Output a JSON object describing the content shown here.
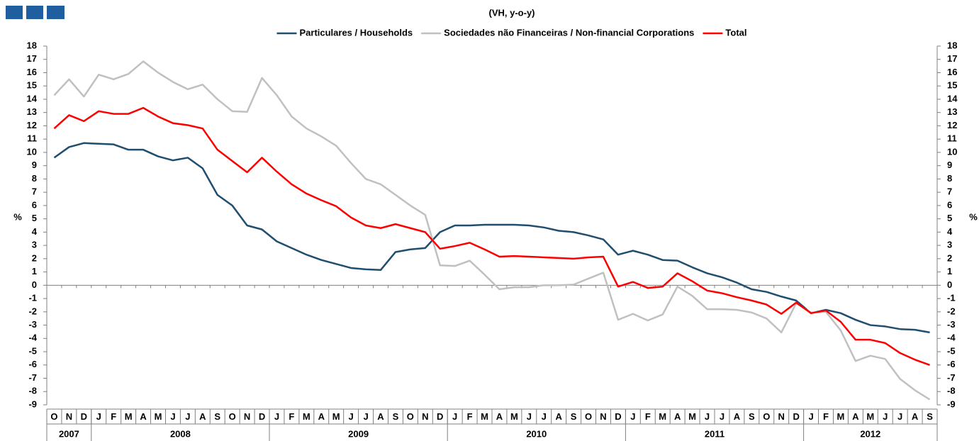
{
  "chart_data": {
    "type": "line",
    "title": "(VH, y-o-y)",
    "y_label": "%",
    "categories": [
      "O",
      "N",
      "D",
      "J",
      "F",
      "M",
      "A",
      "M",
      "J",
      "J",
      "A",
      "S",
      "O",
      "N",
      "D",
      "J",
      "F",
      "M",
      "A",
      "M",
      "J",
      "J",
      "A",
      "S",
      "O",
      "N",
      "D",
      "J",
      "F",
      "M",
      "A",
      "M",
      "J",
      "J",
      "A",
      "S",
      "O",
      "N",
      "D",
      "J",
      "F",
      "M",
      "A",
      "M",
      "J",
      "J",
      "A",
      "S",
      "O",
      "N",
      "D",
      "J",
      "F",
      "M",
      "A",
      "M",
      "J",
      "J",
      "A",
      "S"
    ],
    "years": [
      "2007",
      "2008",
      "2009",
      "2010",
      "2011",
      "2012"
    ],
    "series": [
      {
        "name": "Particulares / Households",
        "color": "#1f4e6e",
        "values": [
          9.6,
          10.4,
          10.7,
          10.65,
          10.6,
          10.2,
          10.2,
          9.7,
          9.4,
          9.6,
          8.8,
          6.8,
          6.0,
          4.5,
          4.2,
          3.3,
          2.8,
          2.3,
          1.9,
          1.6,
          1.3,
          1.2,
          1.15,
          2.5,
          2.7,
          2.8,
          4.0,
          4.5,
          4.5,
          4.55,
          4.55,
          4.55,
          4.5,
          4.35,
          4.1,
          4.0,
          3.75,
          3.45,
          2.3,
          2.6,
          2.3,
          1.9,
          1.85,
          1.35,
          0.9,
          0.6,
          0.2,
          -0.3,
          -0.5,
          -0.85,
          -1.15,
          -2.1,
          -1.85,
          -2.1,
          -2.6,
          -3.0,
          -3.1,
          -3.3,
          -3.35,
          -3.55
        ]
      },
      {
        "name": "Sociedades não Financeiras / Non-financial Corporations",
        "color": "#c0c0c0",
        "values": [
          14.3,
          15.5,
          14.2,
          15.85,
          15.5,
          15.9,
          16.85,
          16.0,
          15.3,
          14.75,
          15.1,
          14.0,
          13.1,
          13.05,
          15.6,
          14.3,
          12.7,
          11.8,
          11.2,
          10.5,
          9.2,
          8.0,
          7.6,
          6.8,
          6.0,
          5.3,
          1.5,
          1.45,
          1.85,
          0.8,
          -0.3,
          -0.15,
          -0.15,
          0,
          0,
          0.05,
          0.5,
          0.95,
          -2.6,
          -2.15,
          -2.65,
          -2.2,
          -0.1,
          -0.8,
          -1.8,
          -1.8,
          -1.85,
          -2.05,
          -2.5,
          -3.55,
          -1.35,
          -2.05,
          -2.0,
          -3.4,
          -5.7,
          -5.3,
          -5.55,
          -7.05,
          -7.9,
          -8.6
        ]
      },
      {
        "name": "Total",
        "color": "#ff0000",
        "values": [
          11.8,
          12.8,
          12.35,
          13.1,
          12.9,
          12.9,
          13.35,
          12.7,
          12.2,
          12.05,
          11.8,
          10.2,
          9.35,
          8.5,
          9.6,
          8.55,
          7.6,
          6.9,
          6.4,
          5.95,
          5.1,
          4.5,
          4.3,
          4.6,
          4.3,
          4.0,
          2.75,
          2.95,
          3.2,
          2.7,
          2.15,
          2.2,
          2.15,
          2.1,
          2.05,
          2.0,
          2.1,
          2.15,
          -0.1,
          0.25,
          -0.2,
          -0.1,
          0.9,
          0.3,
          -0.4,
          -0.6,
          -0.9,
          -1.15,
          -1.45,
          -2.15,
          -1.3,
          -2.1,
          -1.9,
          -2.75,
          -4.1,
          -4.1,
          -4.35,
          -5.1,
          -5.6,
          -6.0
        ]
      }
    ],
    "ylim": [
      -9,
      18
    ],
    "yticks": [
      -9,
      -8,
      -7,
      -6,
      -5,
      -4,
      -3,
      -2,
      -1,
      0,
      1,
      2,
      3,
      4,
      5,
      6,
      7,
      8,
      9,
      10,
      11,
      12,
      13,
      14,
      15,
      16,
      17,
      18
    ],
    "grid": false
  }
}
